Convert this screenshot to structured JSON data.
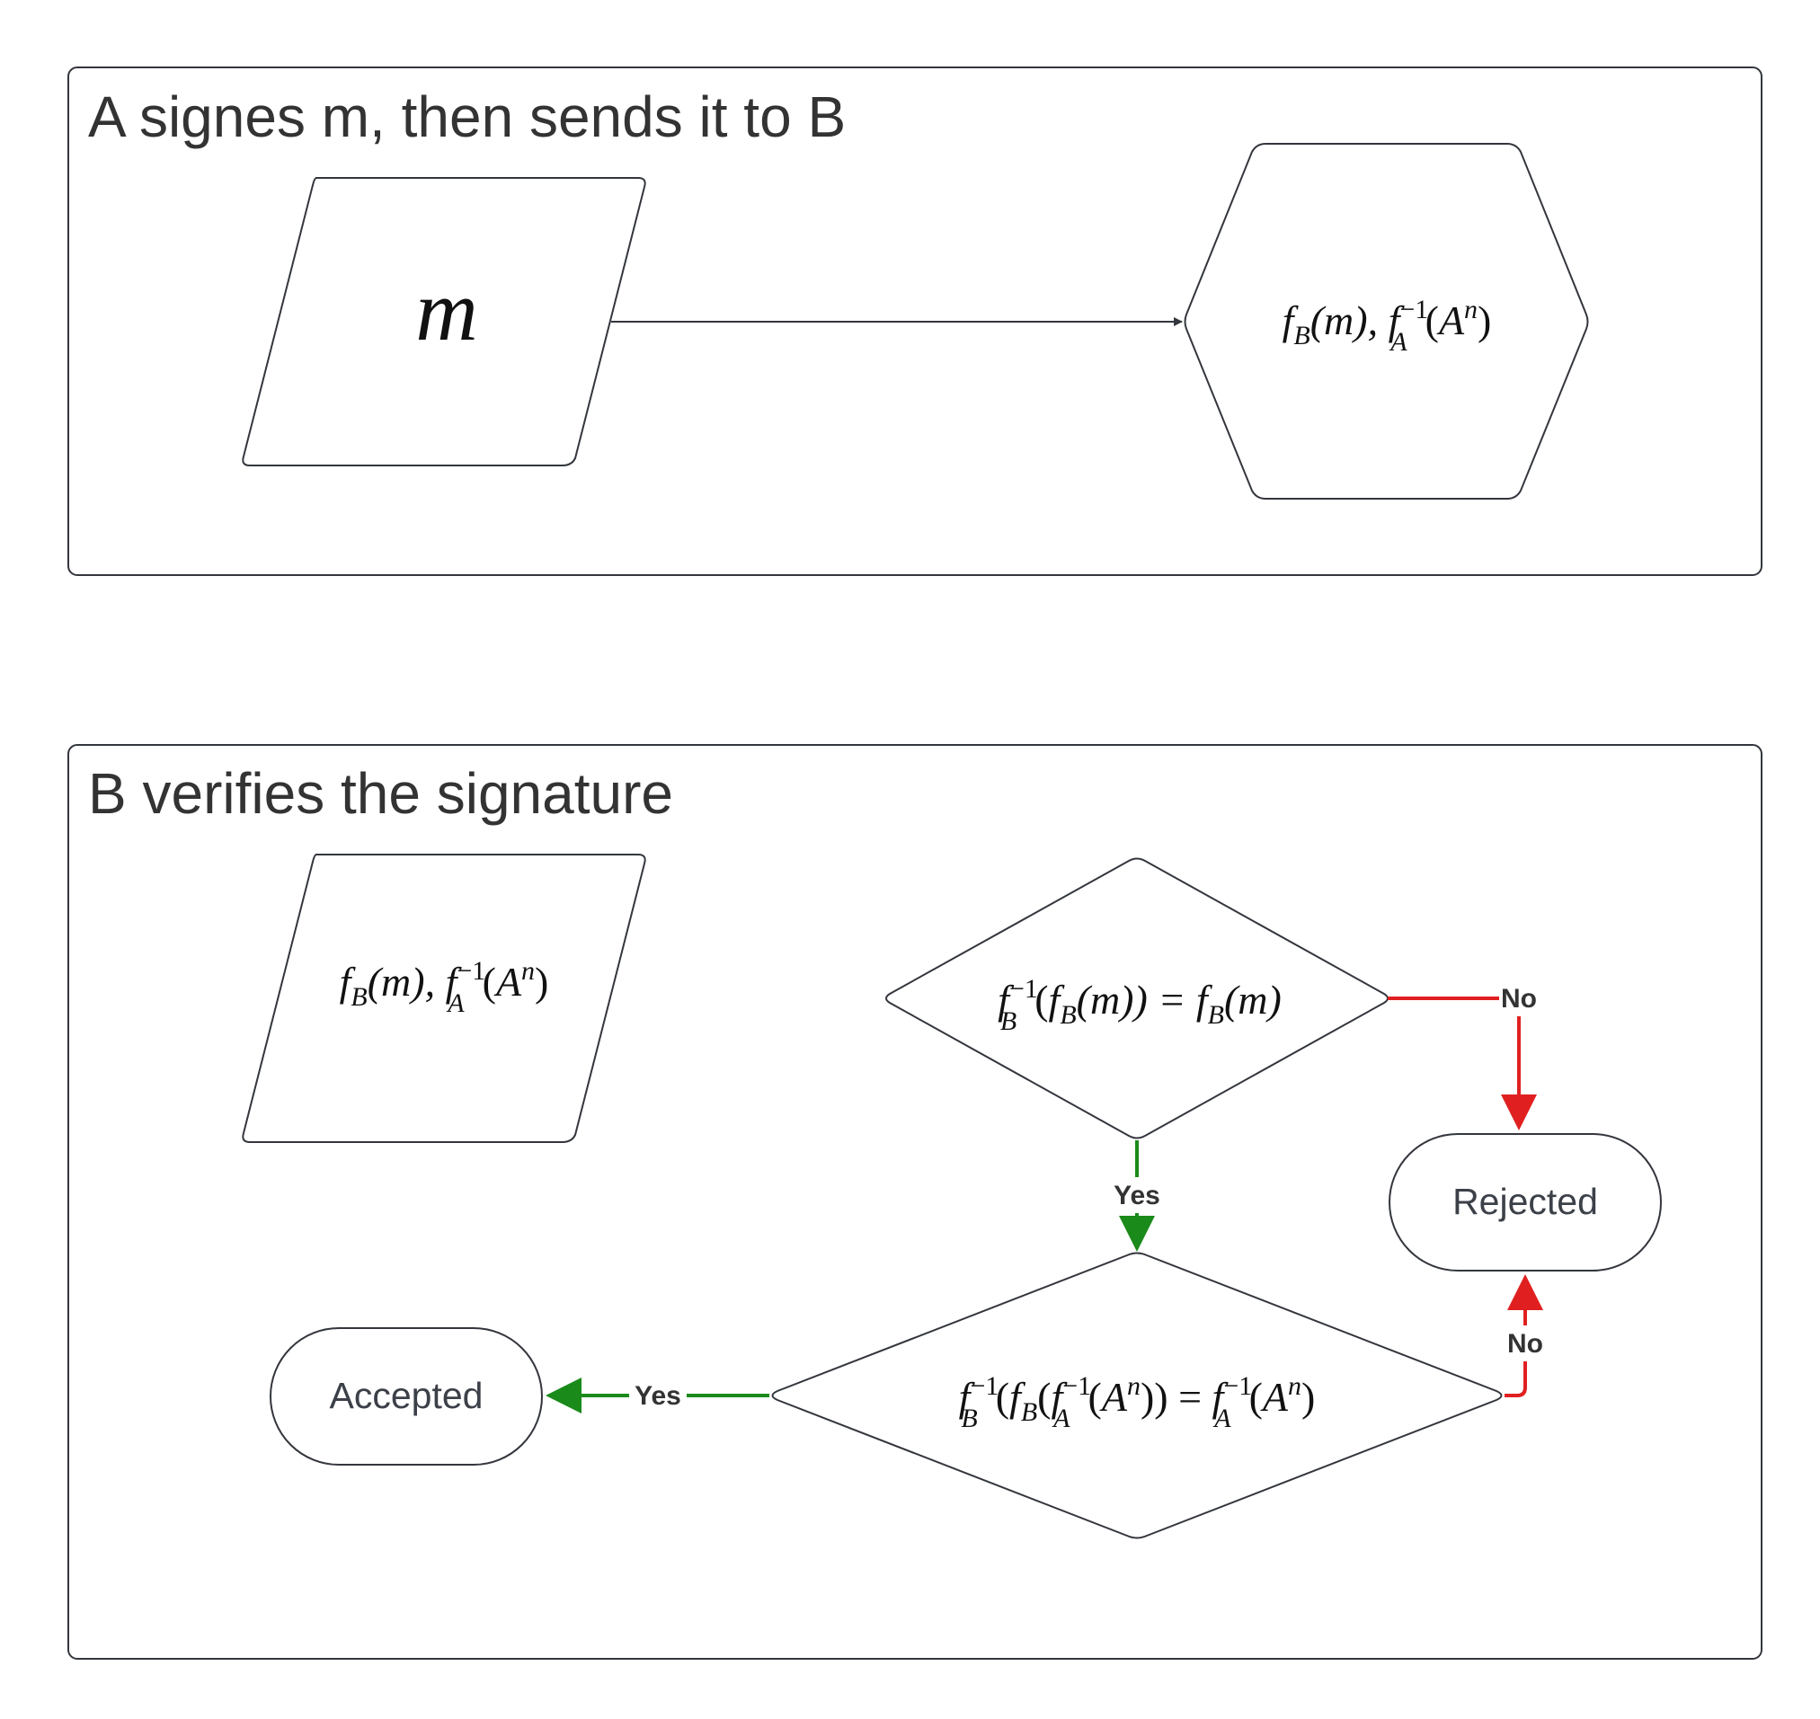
{
  "panels": {
    "sign": {
      "title": "A signes m, then sends it to B"
    },
    "verify": {
      "title": "B verifies the signature"
    }
  },
  "nodes": {
    "message": {
      "text": "m"
    },
    "sent_pair": {
      "f1": "f",
      "s1": "B",
      "p1": "(m), ",
      "f2": "f",
      "sup2": "−1",
      "s2": "A",
      "p2": "(",
      "A": "A",
      "n": "n",
      "p3": ")"
    },
    "received_pair": {
      "f1": "f",
      "s1": "B",
      "p1": "(m), ",
      "f2": "f",
      "sup2": "−1",
      "s2": "A",
      "p2": "(",
      "A": "A",
      "n": "n",
      "p3": ")"
    },
    "check1": {
      "f1": "f",
      "sup1": "−1",
      "s1": "B",
      "p1": "(",
      "f2": "f",
      "s2": "B",
      "p2": "(m)) = ",
      "f3": "f",
      "s3": "B",
      "p3": "(m)"
    },
    "check2": {
      "f1": "f",
      "sup1": "−1",
      "s1": "B",
      "p1": "(",
      "f2": "f",
      "s2": "B",
      "p2": "(",
      "f3": "f",
      "sup3": "−1",
      "s3": "A",
      "p3": "(",
      "A1": "A",
      "n1": "n",
      "p4": ")) = ",
      "f4": "f",
      "sup4": "−1",
      "s4": "A",
      "p5": "(",
      "A2": "A",
      "n2": "n",
      "p6": ")"
    },
    "rejected": {
      "label": "Rejected"
    },
    "accepted": {
      "label": "Accepted"
    }
  },
  "edges": {
    "check1_no": {
      "label": "No"
    },
    "check1_yes": {
      "label": "Yes"
    },
    "check2_no": {
      "label": "No"
    },
    "check2_yes": {
      "label": "Yes"
    }
  },
  "colors": {
    "stroke": "#33363d",
    "yes": "#1a8a1a",
    "no": "#e02020",
    "title_text": "#333333",
    "terminal_text": "#3c4048"
  },
  "icons": {
    "arrowhead": "triangle-arrowhead-icon"
  }
}
